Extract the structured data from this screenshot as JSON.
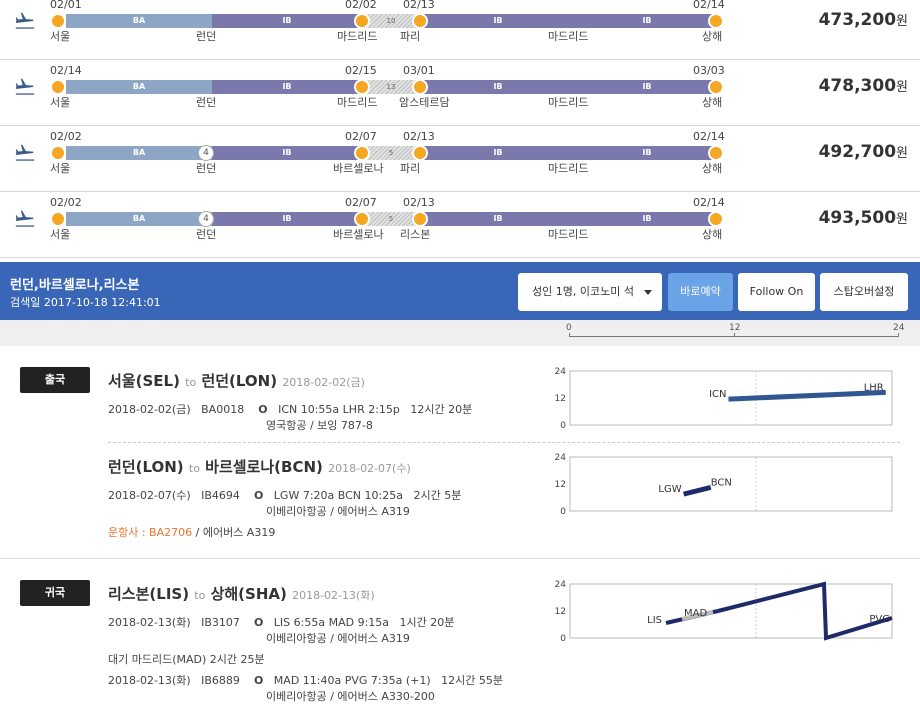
{
  "itineraries": [
    {
      "price": "473,200",
      "currency": "원",
      "segments": [
        {
          "type": "ba",
          "label": "BA"
        },
        {
          "type": "ib",
          "label": "IB"
        },
        {
          "type": "lay",
          "label": "10"
        },
        {
          "type": "ib",
          "label": "IB"
        },
        {
          "type": "ib",
          "label": "IB"
        }
      ],
      "dates": [
        "02/01",
        "02/02",
        "02/13",
        "02/14"
      ],
      "cities": [
        "서울",
        "런던",
        "마드리드",
        "파리",
        "마드리드",
        "상해"
      ]
    },
    {
      "price": "478,300",
      "currency": "원",
      "segments": [
        {
          "type": "ba",
          "label": "BA"
        },
        {
          "type": "ib",
          "label": "IB"
        },
        {
          "type": "lay",
          "label": "13"
        },
        {
          "type": "ib",
          "label": "IB"
        },
        {
          "type": "ib",
          "label": "IB"
        }
      ],
      "dates": [
        "02/14",
        "02/15",
        "03/01",
        "03/03"
      ],
      "cities": [
        "서울",
        "런던",
        "마드리드",
        "암스테르담",
        "마드리드",
        "상해"
      ]
    },
    {
      "price": "492,700",
      "currency": "원",
      "stop_badge": "4",
      "segments": [
        {
          "type": "ba",
          "label": "BA"
        },
        {
          "type": "ib",
          "label": "IB"
        },
        {
          "type": "lay",
          "label": "5"
        },
        {
          "type": "ib",
          "label": "IB"
        },
        {
          "type": "ib",
          "label": "IB"
        }
      ],
      "dates": [
        "02/02",
        "02/07",
        "02/13",
        "02/14"
      ],
      "cities": [
        "서울",
        "런던",
        "바르셀로나",
        "파리",
        "마드리드",
        "상해"
      ]
    },
    {
      "price": "493,500",
      "currency": "원",
      "stop_badge": "4",
      "segments": [
        {
          "type": "ba",
          "label": "BA"
        },
        {
          "type": "ib",
          "label": "IB"
        },
        {
          "type": "lay",
          "label": "5"
        },
        {
          "type": "ib",
          "label": "IB"
        },
        {
          "type": "ib",
          "label": "IB"
        }
      ],
      "dates": [
        "02/02",
        "02/07",
        "02/13",
        "02/14"
      ],
      "cities": [
        "서울",
        "런던",
        "바르셀로나",
        "리스본",
        "마드리드",
        "상해"
      ]
    }
  ],
  "header": {
    "route": "런던,바르셀로나,리스본",
    "search_date": "검색일 2017-10-18 12:41:01",
    "passenger_select": "성인 1명, 이코노미 석",
    "book_now": "바로예약",
    "follow_on": "Follow On",
    "stopover": "스탑오버설정"
  },
  "timescale": {
    "ticks": [
      "0",
      "12",
      "24"
    ]
  },
  "outbound": {
    "badge": "출국",
    "legs": [
      {
        "from": "서울(SEL)",
        "to_word": "to",
        "to": "런던(LON)",
        "date": "2018-02-02(금)",
        "flights": [
          {
            "date": "2018-02-02(금)",
            "number": "BA0018",
            "marker": "O",
            "times": "ICN 10:55a LHR 2:15p",
            "duration": "12시간 20분",
            "carrier": "영국항공 / 보잉 787-8"
          }
        ],
        "chart": {
          "points": [
            {
              "code": "ICN",
              "x": 10.92,
              "y": 11.5
            },
            {
              "code": "LHR",
              "x": 23.5,
              "y": 14.5
            }
          ],
          "yticks": [
            "24",
            "12",
            "0"
          ]
        }
      },
      {
        "from": "런던(LON)",
        "to_word": "to",
        "to": "바르셀로나(BCN)",
        "date": "2018-02-07(수)",
        "flights": [
          {
            "date": "2018-02-07(수)",
            "number": "IB4694",
            "marker": "O",
            "times": "LGW 7:20a BCN 10:25a",
            "duration": "2시간 5분",
            "carrier": "이베리아항공 / 에어버스 A319"
          }
        ],
        "operator_label": "운항사 : BA2706",
        "operator_aircraft": " / 에어버스 A319",
        "chart": {
          "points": [
            {
              "code": "LGW",
              "x": 7.33,
              "y": 7.5
            },
            {
              "code": "BCN",
              "x": 9.5,
              "y": 10.5
            }
          ],
          "yticks": [
            "24",
            "12",
            "0"
          ]
        }
      }
    ]
  },
  "inbound": {
    "badge": "귀국",
    "legs": [
      {
        "from": "리스본(LIS)",
        "to_word": "to",
        "to": "상해(SHA)",
        "date": "2018-02-13(화)",
        "flights": [
          {
            "date": "2018-02-13(화)",
            "number": "IB3107",
            "marker": "O",
            "times": "LIS 6:55a MAD 9:15a",
            "duration": "1시간 20분",
            "carrier": "이베리아항공 / 에어버스 A319"
          },
          {
            "date": "2018-02-13(화)",
            "number": "IB6889",
            "marker": "O",
            "times": "MAD 11:40a PVG 7:35a (+1)",
            "duration": "12시간 55분",
            "carrier": "이베리아항공 / 에어버스 A330-200"
          }
        ],
        "wait": "대기 마드리드(MAD)   2시간 25분",
        "chart": {
          "codes": [
            "LIS",
            "MAD",
            "PVG"
          ],
          "yticks": [
            "24",
            "12",
            "0"
          ]
        }
      }
    ]
  },
  "colors": {
    "accent": "#3a66b8",
    "node": "#f5a623",
    "ba": "#8da6c6",
    "ib": "#7b78ab",
    "chart_line": "#2b4a8c"
  }
}
